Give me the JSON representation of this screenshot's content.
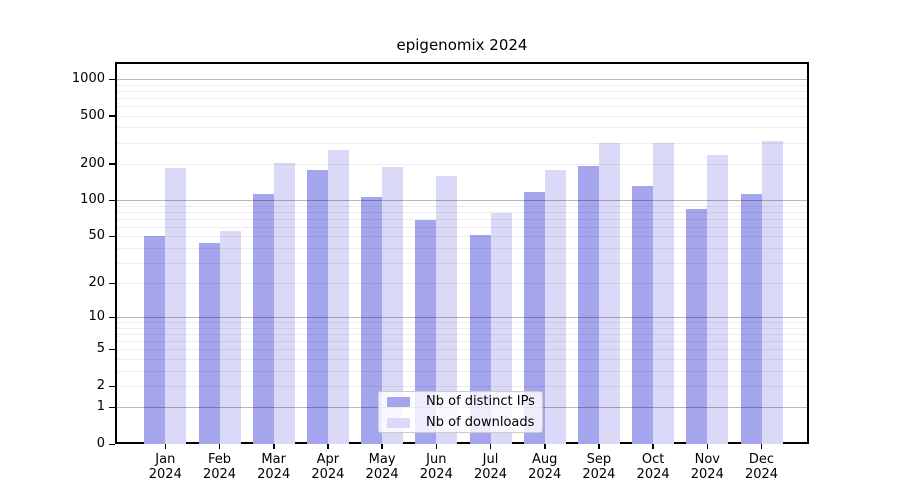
{
  "chart_data": {
    "type": "bar",
    "title": "epigenomix 2024",
    "scale": "log1p",
    "categories": [
      "Jan",
      "Feb",
      "Mar",
      "Apr",
      "May",
      "Jun",
      "Jul",
      "Aug",
      "Sep",
      "Oct",
      "Nov",
      "Dec"
    ],
    "year": "2024",
    "series": [
      {
        "name": "Nb of distinct IPs",
        "color": "#a5a5ee",
        "values": [
          50,
          44,
          112,
          178,
          107,
          68,
          51,
          116,
          192,
          131,
          85,
          113
        ]
      },
      {
        "name": "Nb of downloads",
        "color": "#dadaf8",
        "values": [
          186,
          55,
          204,
          260,
          189,
          160,
          79,
          178,
          295,
          295,
          237,
          309
        ]
      }
    ],
    "yticks": [
      0,
      1,
      2,
      5,
      10,
      20,
      50,
      100,
      200,
      500,
      1000
    ],
    "ylim": [
      0,
      1380
    ],
    "xlabel": "",
    "ylabel": "",
    "grid": true,
    "legend_position": "lower center"
  }
}
